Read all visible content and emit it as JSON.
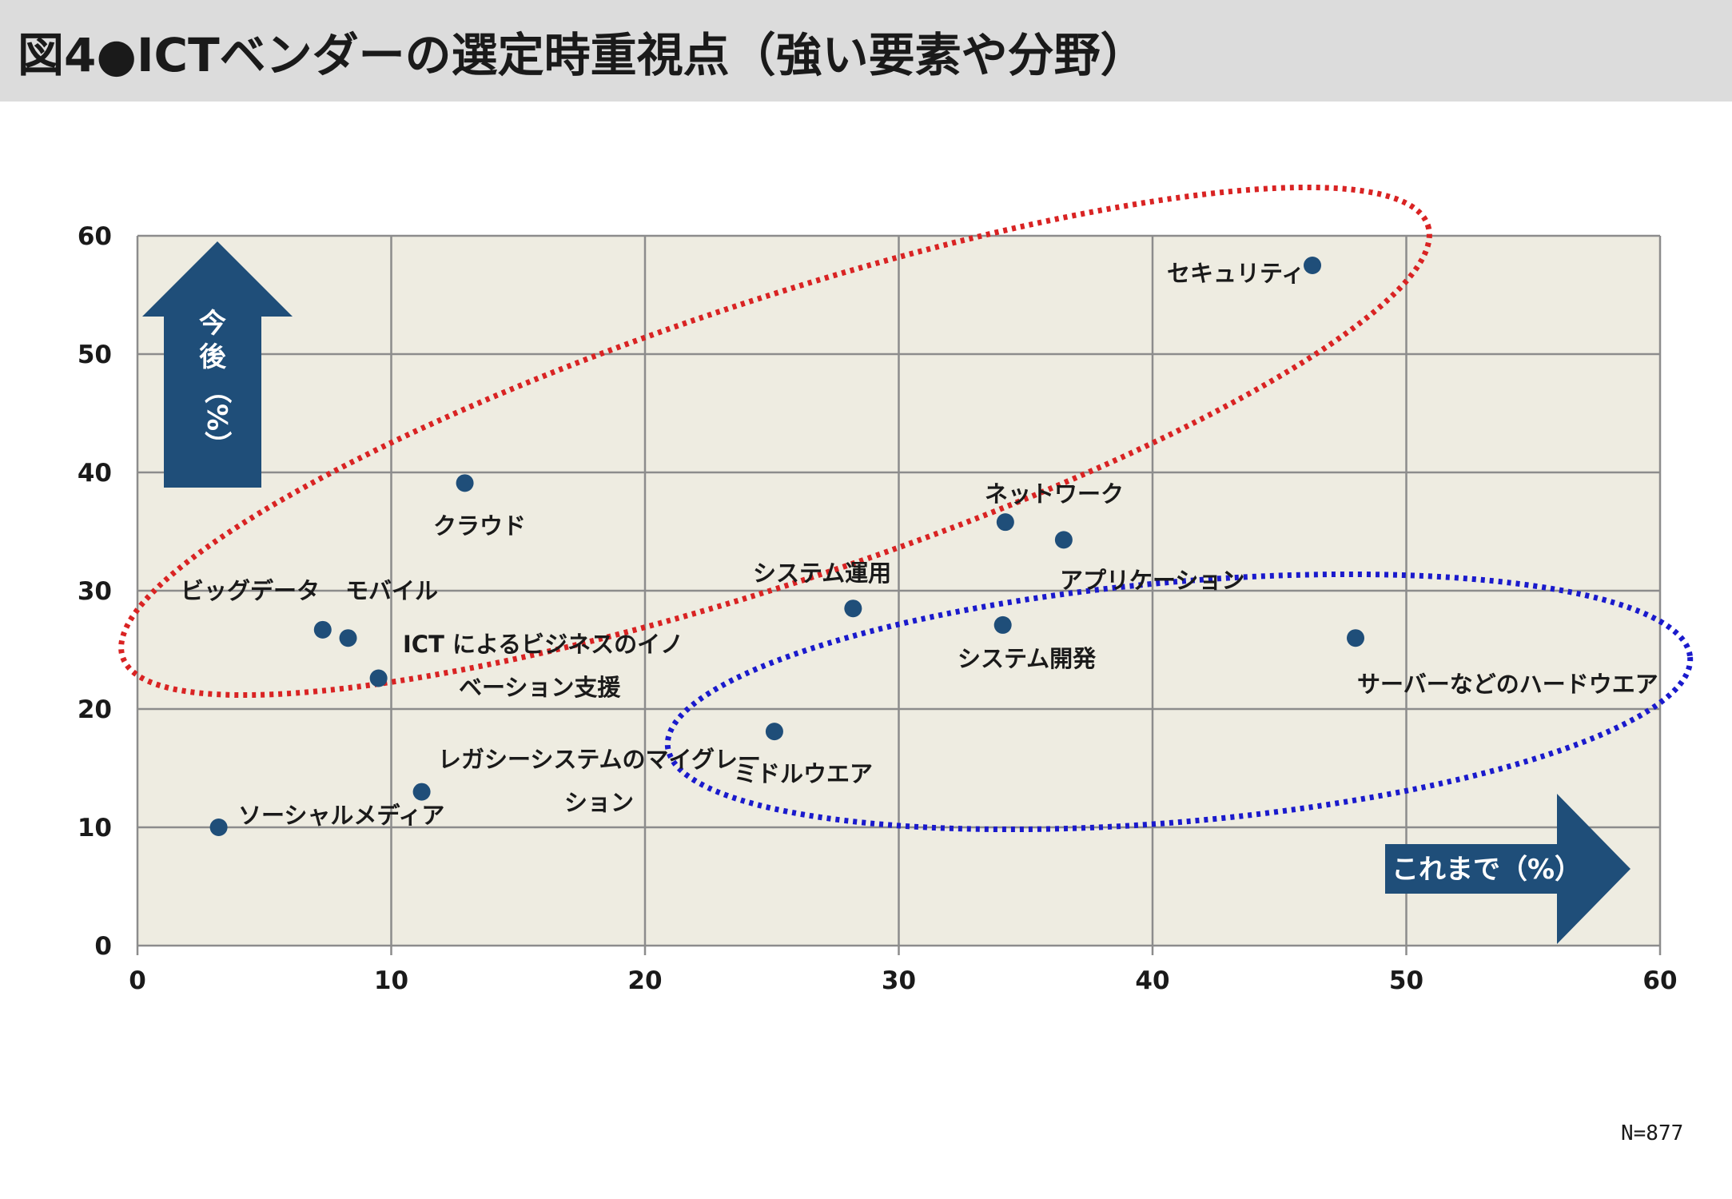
{
  "title": "図4●ICTベンダーの選定時重視点（強い要素や分野）",
  "note": "N=877",
  "chart_data": {
    "type": "scatter",
    "title": "図4●ICTベンダーの選定時重視点（強い要素や分野）",
    "xlabel": "これまで（%）",
    "ylabel": "今後（%）",
    "xlim": [
      0,
      60
    ],
    "ylim": [
      0,
      60
    ],
    "xticks": [
      0,
      10,
      20,
      30,
      40,
      50,
      60
    ],
    "yticks": [
      0,
      10,
      20,
      30,
      40,
      50,
      60
    ],
    "grid": true,
    "marker_color": "#1f4e79",
    "points": [
      {
        "label": "セキュリティ",
        "x": 46.3,
        "y": 57.5
      },
      {
        "label": "クラウド",
        "x": 12.9,
        "y": 39.1
      },
      {
        "label": "ネットワーク",
        "x": 34.2,
        "y": 35.8
      },
      {
        "label": "アプリケーション",
        "x": 36.5,
        "y": 34.3
      },
      {
        "label": "システム運用",
        "x": 28.2,
        "y": 28.5
      },
      {
        "label": "システム開発",
        "x": 34.1,
        "y": 27.1
      },
      {
        "label": "ビッグデータ",
        "x": 7.3,
        "y": 26.7
      },
      {
        "label": "モバイル",
        "x": 8.3,
        "y": 26.0
      },
      {
        "label": "サーバーなどのハードウエア",
        "x": 48.0,
        "y": 26.0
      },
      {
        "label": "ICT によるビジネスのイノベーション支援",
        "x": 9.5,
        "y": 22.6
      },
      {
        "label": "ミドルウエア",
        "x": 25.1,
        "y": 18.1
      },
      {
        "label": "レガシーシステムのマイグレーション",
        "x": 11.2,
        "y": 13.0
      },
      {
        "label": "ソーシャルメディア",
        "x": 3.2,
        "y": 10.0
      }
    ],
    "highlight_groups": [
      {
        "color": "#d92323",
        "members": [
          "セキュリティ",
          "クラウド",
          "ネットワーク",
          "アプリケーション",
          "ビッグデータ",
          "モバイル",
          "ICT によるビジネスのイノベーション支援"
        ]
      },
      {
        "color": "#1a1acc",
        "members": [
          "システム開発",
          "サーバーなどのハードウエア",
          "ミドルウエア"
        ]
      }
    ]
  },
  "labels": {
    "p0": [
      "セキュリティ"
    ],
    "p1": [
      "クラウド"
    ],
    "p2": [
      "ネットワーク"
    ],
    "p3": [
      "アプリケーション"
    ],
    "p4": [
      "システム運用"
    ],
    "p5": [
      "システム開発"
    ],
    "p6": [
      "ビッグデータ"
    ],
    "p7": [
      "モバイル"
    ],
    "p8": [
      "サーバーなどのハードウエア"
    ],
    "p9": [
      "ICT によるビジネスのイノ",
      "ベーション支援"
    ],
    "p10": [
      "ミドルウエア"
    ],
    "p11": [
      "レガシーシステムのマイグレー",
      "ション"
    ],
    "p12": [
      "ソーシャルメディア"
    ]
  }
}
